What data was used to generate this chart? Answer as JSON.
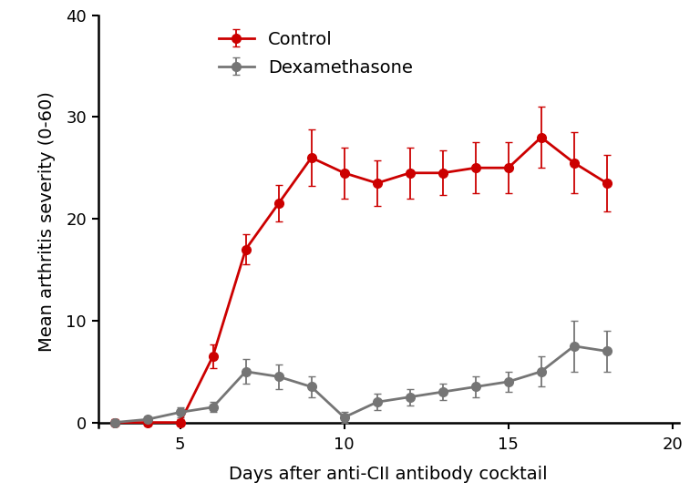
{
  "control_x": [
    3,
    4,
    5,
    6,
    7,
    8,
    9,
    10,
    11,
    12,
    13,
    14,
    15,
    16,
    17,
    18
  ],
  "control_y": [
    0,
    0,
    0,
    6.5,
    17,
    21.5,
    26,
    24.5,
    23.5,
    24.5,
    24.5,
    25,
    25,
    28,
    25.5,
    23.5
  ],
  "control_yerr": [
    0.3,
    0.3,
    0.3,
    1.2,
    1.5,
    1.8,
    2.8,
    2.5,
    2.2,
    2.5,
    2.2,
    2.5,
    2.5,
    3.0,
    3.0,
    2.8
  ],
  "dexa_x": [
    3,
    4,
    5,
    6,
    7,
    8,
    9,
    10,
    11,
    12,
    13,
    14,
    15,
    16,
    17,
    18
  ],
  "dexa_y": [
    0,
    0.3,
    1.0,
    1.5,
    5.0,
    4.5,
    3.5,
    0.5,
    2.0,
    2.5,
    3.0,
    3.5,
    4.0,
    5.0,
    7.5,
    7.0
  ],
  "dexa_yerr": [
    0.2,
    0.3,
    0.5,
    0.5,
    1.2,
    1.2,
    1.0,
    0.5,
    0.8,
    0.8,
    0.8,
    1.0,
    1.0,
    1.5,
    2.5,
    2.0
  ],
  "control_color": "#CC0000",
  "dexa_color": "#757575",
  "control_label": "Control",
  "dexa_label": "Dexamethasone",
  "xlabel": "Days after anti-CII antibody cocktail",
  "ylabel": "Mean arthritis severity (0-60)",
  "xlim": [
    2.5,
    20.2
  ],
  "ylim": [
    -0.5,
    40
  ],
  "xticks": [
    5,
    10,
    15,
    20
  ],
  "yticks": [
    0,
    10,
    20,
    30,
    40
  ],
  "marker_size": 7,
  "line_width": 2.0,
  "capsize": 3,
  "elinewidth": 1.3,
  "background_color": "#ffffff",
  "label_fontsize": 14,
  "tick_fontsize": 13,
  "legend_fontsize": 14
}
